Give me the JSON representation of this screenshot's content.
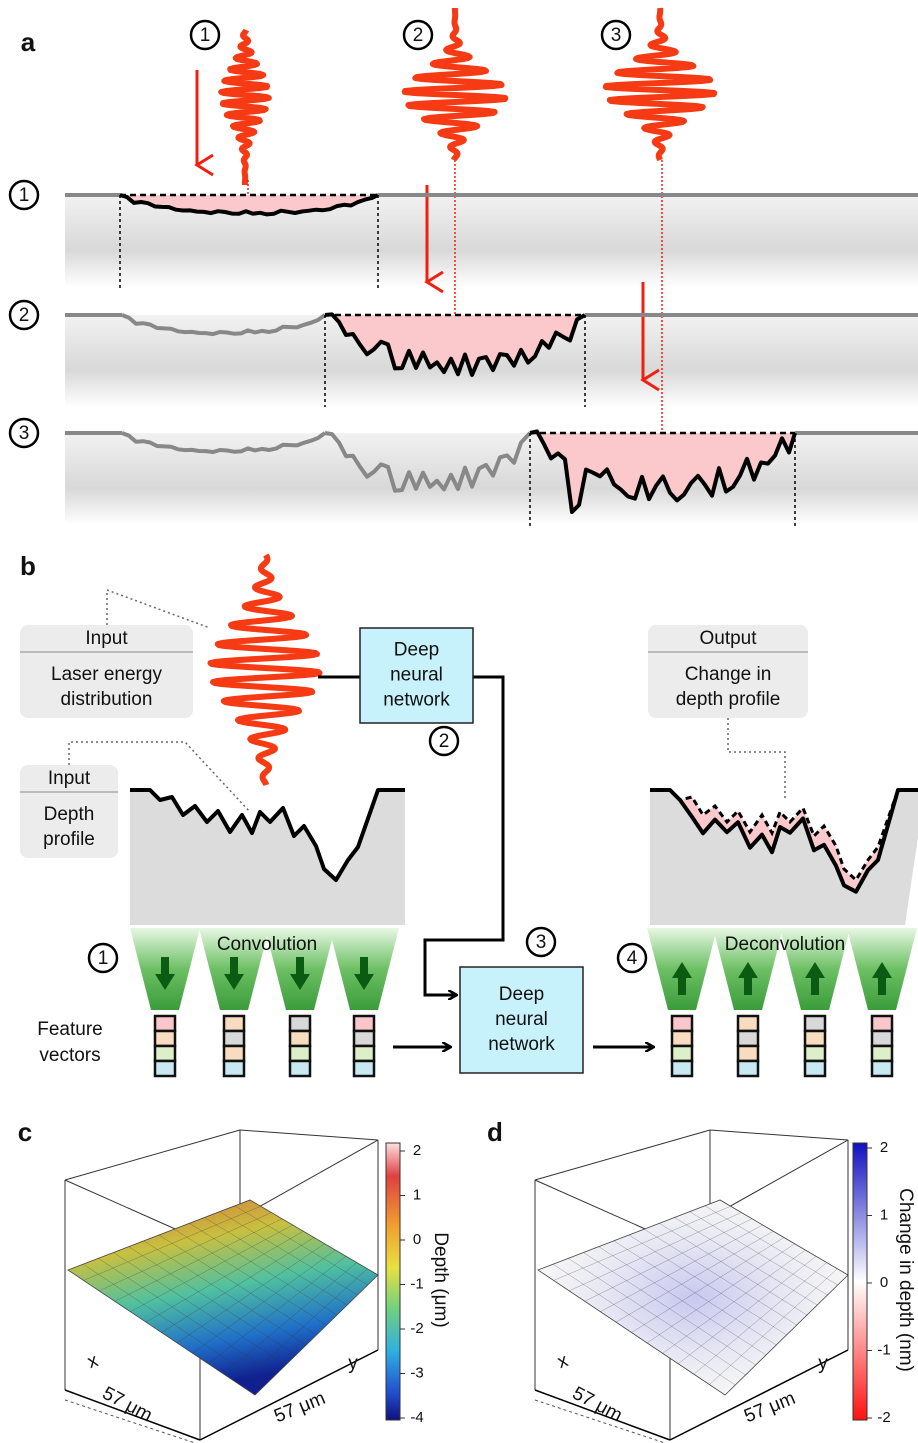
{
  "panel_a": {
    "label": "a",
    "pulse_steps": [
      1,
      2,
      3
    ],
    "row_steps": [
      1,
      2,
      3
    ]
  },
  "panel_b": {
    "label": "b",
    "laser_input": {
      "heading": "Input",
      "text": [
        "Laser energy",
        "distribution"
      ]
    },
    "depth_input": {
      "heading": "Input",
      "text": [
        "Depth",
        "profile"
      ]
    },
    "output": {
      "heading": "Output",
      "text": [
        "Change in",
        "depth profile"
      ]
    },
    "network_top": [
      "Deep",
      "neural",
      "network"
    ],
    "network_bottom": [
      "Deep",
      "neural",
      "network"
    ],
    "convolution": "Convolution",
    "deconvolution": "Deconvolution",
    "feature_vectors": [
      "Feature",
      "vectors"
    ],
    "steps": [
      1,
      2,
      3,
      4
    ]
  },
  "panel_c": {
    "label": "c",
    "colorbar_ticks": [
      2,
      1,
      0,
      -1,
      -2,
      -3,
      -4
    ],
    "colorbar_label": "Depth (μm)",
    "axis_x": "x",
    "axis_y": "y",
    "extent_x": "57 μm",
    "extent_y": "57 μm"
  },
  "panel_d": {
    "label": "d",
    "colorbar_ticks": [
      2,
      1,
      0,
      -1,
      -2
    ],
    "colorbar_label": "Change in depth (nm)",
    "axis_x": "x",
    "axis_y": "y",
    "extent_x": "57 μm",
    "extent_y": "57 μm"
  }
}
